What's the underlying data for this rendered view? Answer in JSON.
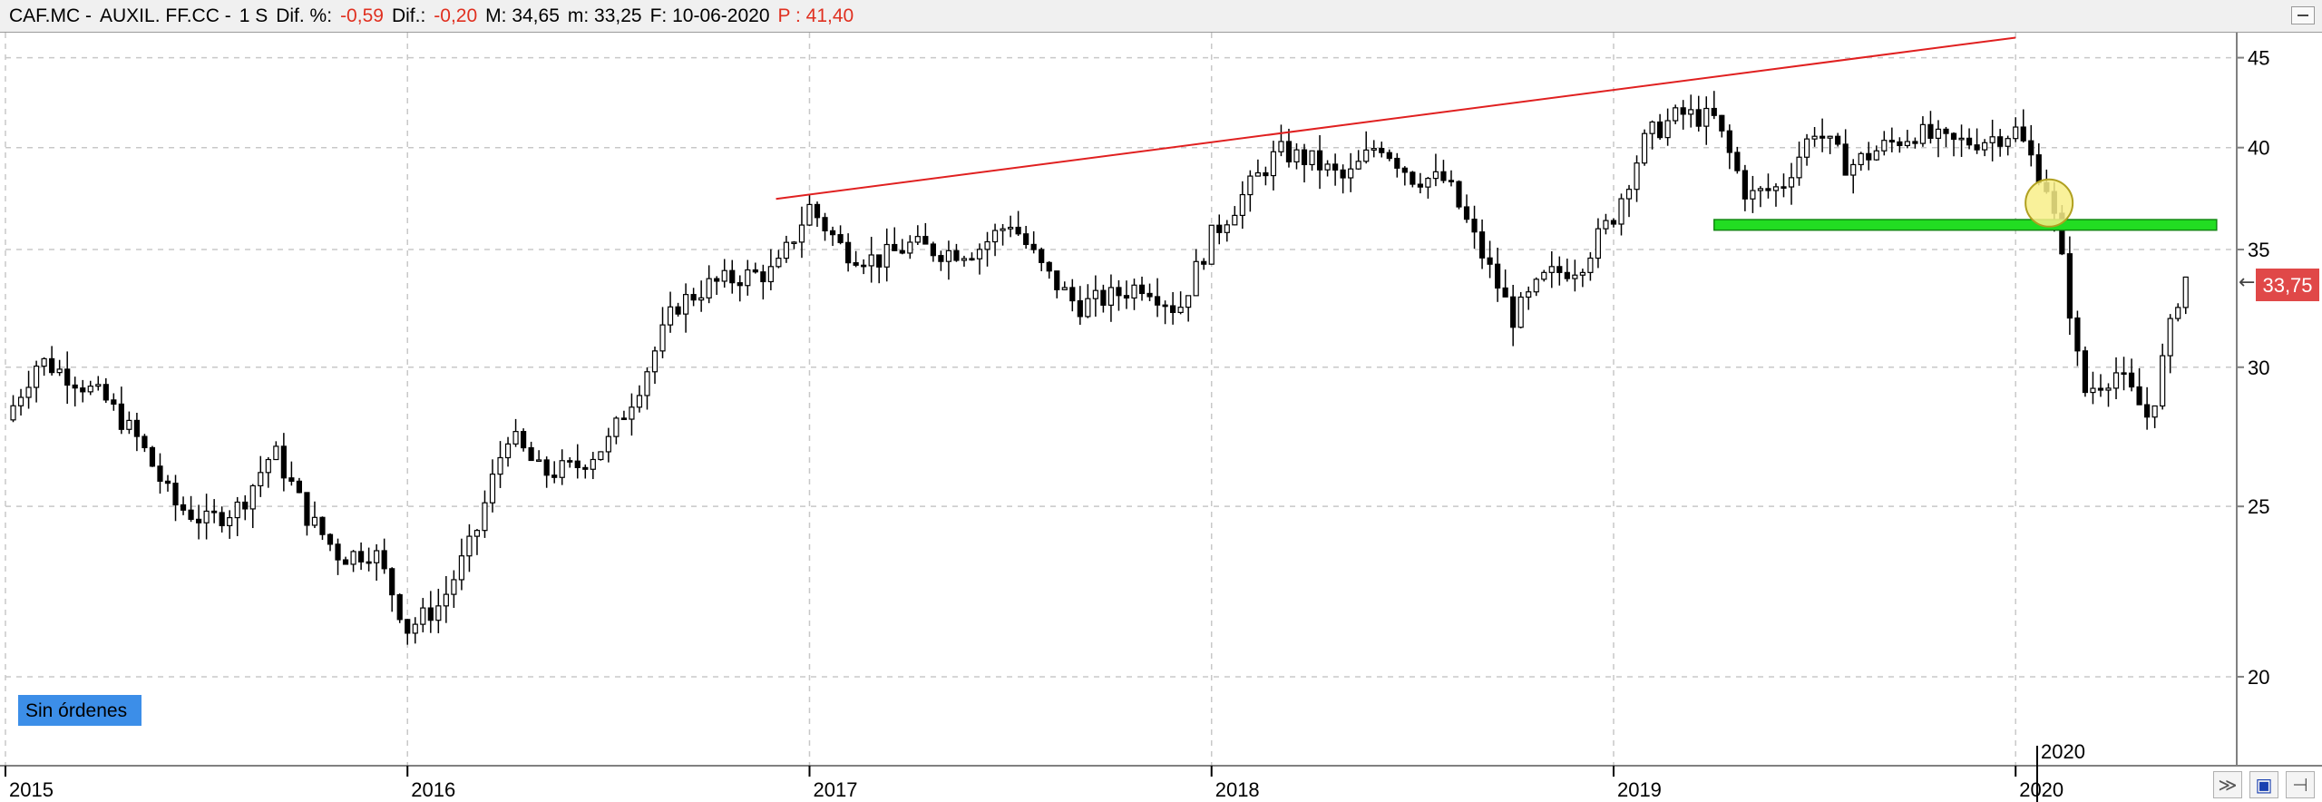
{
  "header": {
    "symbol": "CAF.MC -",
    "name": "AUXIL. FF.CC -",
    "period": "1 S",
    "dif_pct_label": "Dif. %:",
    "dif_pct_value": "-0,59",
    "dif_label": "Dif.:",
    "dif_value": "-0,20",
    "max_label": "M: 34,65",
    "min_label": "m: 33,25",
    "date_label": "F: 10-06-2020",
    "price_label": "P : 41,40"
  },
  "orders_badge": "Sin órdenes",
  "price_tag": "33,75",
  "corner_year": "2020",
  "icons": {
    "collapse": "minimize-icon",
    "fit": "fit-chart-icon",
    "save": "save-icon",
    "pin": "pin-icon"
  },
  "colors": {
    "candle": "#000000",
    "trendline": "#e02020",
    "support_zone": "#22dd22",
    "highlight_circle": "#f8ee88",
    "price_tag_bg": "#e04848",
    "orders_badge_bg": "#3c8ee8"
  },
  "chart_data": {
    "type": "candlestick",
    "scale": "log",
    "ylim": [
      17.8,
      46.5
    ],
    "yticks": [
      "45",
      "40",
      "35",
      "30",
      "25",
      "20"
    ],
    "xticks": [
      "2015",
      "2016",
      "2017",
      "2018",
      "2019",
      "2020"
    ],
    "grid": true,
    "last_price": 33.75,
    "approx_weekly_closes": [
      [
        "2015-01",
        28.0
      ],
      [
        "2015-02",
        30.3
      ],
      [
        "2015-03",
        29.6
      ],
      [
        "2015-04",
        28.7
      ],
      [
        "2015-05",
        27.2
      ],
      [
        "2015-06",
        25.1
      ],
      [
        "2015-07",
        24.5
      ],
      [
        "2015-08",
        25.0
      ],
      [
        "2015-09",
        26.9
      ],
      [
        "2015-10",
        24.7
      ],
      [
        "2015-11",
        23.4
      ],
      [
        "2015-12",
        23.6
      ],
      [
        "2016-01",
        21.3
      ],
      [
        "2016-02",
        22.0
      ],
      [
        "2016-03",
        24.0
      ],
      [
        "2016-04",
        27.5
      ],
      [
        "2016-05",
        26.1
      ],
      [
        "2016-06",
        26.3
      ],
      [
        "2016-07",
        27.2
      ],
      [
        "2016-08",
        29.5
      ],
      [
        "2016-09",
        32.5
      ],
      [
        "2016-10",
        33.4
      ],
      [
        "2016-11",
        33.8
      ],
      [
        "2016-12",
        34.0
      ],
      [
        "2017-01",
        37.0
      ],
      [
        "2017-02",
        35.0
      ],
      [
        "2017-03",
        34.5
      ],
      [
        "2017-04",
        35.2
      ],
      [
        "2017-05",
        34.9
      ],
      [
        "2017-06",
        35.0
      ],
      [
        "2017-07",
        36.3
      ],
      [
        "2017-08",
        34.0
      ],
      [
        "2017-09",
        32.5
      ],
      [
        "2017-10",
        32.9
      ],
      [
        "2017-11",
        33.5
      ],
      [
        "2017-12",
        32.3
      ],
      [
        "2018-01",
        35.6
      ],
      [
        "2018-02",
        37.7
      ],
      [
        "2018-03",
        39.8
      ],
      [
        "2018-04",
        39.3
      ],
      [
        "2018-05",
        38.3
      ],
      [
        "2018-06",
        40.3
      ],
      [
        "2018-07",
        38.5
      ],
      [
        "2018-08",
        38.3
      ],
      [
        "2018-09",
        35.0
      ],
      [
        "2018-10",
        32.0
      ],
      [
        "2018-11",
        33.8
      ],
      [
        "2018-12",
        34.3
      ],
      [
        "2019-01",
        36.6
      ],
      [
        "2019-02",
        40.6
      ],
      [
        "2019-03",
        41.8
      ],
      [
        "2019-04",
        41.5
      ],
      [
        "2019-05",
        37.5
      ],
      [
        "2019-06",
        38.0
      ],
      [
        "2019-07",
        41.0
      ],
      [
        "2019-08",
        39.0
      ],
      [
        "2019-09",
        40.0
      ],
      [
        "2019-10",
        40.8
      ],
      [
        "2019-11",
        40.2
      ],
      [
        "2019-12",
        40.4
      ],
      [
        "2020-01",
        40.9
      ],
      [
        "2020-02",
        37.8
      ],
      [
        "2020-03",
        29.0
      ],
      [
        "2020-04",
        29.8
      ],
      [
        "2020-05",
        28.0
      ],
      [
        "2020-06",
        33.75
      ]
    ],
    "annotations": [
      {
        "type": "trendline",
        "from": [
          "2016-12",
          37.4
        ],
        "to": [
          "2020-01",
          46.2
        ]
      },
      {
        "type": "support_zone",
        "from": "2019-04",
        "to": "2020-07",
        "low": 35.9,
        "high": 36.4
      },
      {
        "type": "circle_marker",
        "at": [
          "2020-02",
          37.2
        ]
      }
    ]
  }
}
